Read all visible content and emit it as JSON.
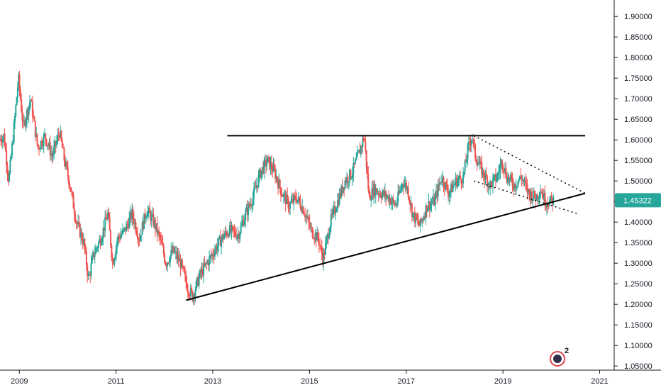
{
  "chart_data": {
    "type": "candlestick",
    "title": "",
    "xlabel": "",
    "ylabel": "",
    "ylim": [
      1.04,
      1.94
    ],
    "xlim": [
      2008.6,
      2021.3
    ],
    "x_ticks": [
      {
        "value": 2009,
        "label": "2009"
      },
      {
        "value": 2011,
        "label": "2011"
      },
      {
        "value": 2013,
        "label": "2013"
      },
      {
        "value": 2015,
        "label": "2015"
      },
      {
        "value": 2017,
        "label": "2017"
      },
      {
        "value": 2019,
        "label": "2019"
      },
      {
        "value": 2021,
        "label": "2021"
      }
    ],
    "y_ticks": [
      {
        "value": 1.05,
        "label": "1.05000"
      },
      {
        "value": 1.1,
        "label": "1.10000"
      },
      {
        "value": 1.15,
        "label": "1.15000"
      },
      {
        "value": 1.2,
        "label": "1.20000"
      },
      {
        "value": 1.25,
        "label": "1.25000"
      },
      {
        "value": 1.3,
        "label": "1.30000"
      },
      {
        "value": 1.35,
        "label": "1.35000"
      },
      {
        "value": 1.4,
        "label": "1.40000"
      },
      {
        "value": 1.45,
        "label": "1.45000"
      },
      {
        "value": 1.5,
        "label": "1.50000"
      },
      {
        "value": 1.55,
        "label": "1.55000"
      },
      {
        "value": 1.6,
        "label": "1.60000"
      },
      {
        "value": 1.65,
        "label": "1.65000"
      },
      {
        "value": 1.7,
        "label": "1.70000"
      },
      {
        "value": 1.75,
        "label": "1.75000"
      },
      {
        "value": 1.8,
        "label": "1.80000"
      },
      {
        "value": 1.85,
        "label": "1.85000"
      },
      {
        "value": 1.9,
        "label": "1.90000"
      }
    ],
    "last_price": {
      "value": 1.45322,
      "label": "1.45322",
      "color": "#26a69a"
    },
    "colors": {
      "up": "#26a69a",
      "down": "#ef5350",
      "trendline": "#000000",
      "axis": "#131722"
    },
    "grid": false,
    "price_path": [
      [
        2008.6,
        1.6
      ],
      [
        2008.7,
        1.61
      ],
      [
        2008.8,
        1.5
      ],
      [
        2008.9,
        1.62
      ],
      [
        2009.0,
        1.75
      ],
      [
        2009.1,
        1.63
      ],
      [
        2009.25,
        1.7
      ],
      [
        2009.4,
        1.58
      ],
      [
        2009.55,
        1.61
      ],
      [
        2009.7,
        1.56
      ],
      [
        2009.85,
        1.62
      ],
      [
        2009.95,
        1.55
      ],
      [
        2010.05,
        1.5
      ],
      [
        2010.2,
        1.4
      ],
      [
        2010.35,
        1.35
      ],
      [
        2010.45,
        1.26
      ],
      [
        2010.55,
        1.32
      ],
      [
        2010.7,
        1.36
      ],
      [
        2010.85,
        1.42
      ],
      [
        2010.95,
        1.3
      ],
      [
        2011.05,
        1.36
      ],
      [
        2011.2,
        1.38
      ],
      [
        2011.35,
        1.42
      ],
      [
        2011.5,
        1.36
      ],
      [
        2011.65,
        1.43
      ],
      [
        2011.8,
        1.4
      ],
      [
        2011.95,
        1.35
      ],
      [
        2012.05,
        1.3
      ],
      [
        2012.2,
        1.33
      ],
      [
        2012.35,
        1.3
      ],
      [
        2012.5,
        1.24
      ],
      [
        2012.6,
        1.22
      ],
      [
        2012.75,
        1.27
      ],
      [
        2012.9,
        1.3
      ],
      [
        2013.05,
        1.33
      ],
      [
        2013.2,
        1.36
      ],
      [
        2013.35,
        1.38
      ],
      [
        2013.55,
        1.37
      ],
      [
        2013.7,
        1.42
      ],
      [
        2013.85,
        1.46
      ],
      [
        2014.0,
        1.52
      ],
      [
        2014.15,
        1.55
      ],
      [
        2014.3,
        1.52
      ],
      [
        2014.45,
        1.47
      ],
      [
        2014.6,
        1.44
      ],
      [
        2014.75,
        1.46
      ],
      [
        2014.9,
        1.43
      ],
      [
        2015.05,
        1.38
      ],
      [
        2015.2,
        1.36
      ],
      [
        2015.3,
        1.31
      ],
      [
        2015.45,
        1.4
      ],
      [
        2015.6,
        1.45
      ],
      [
        2015.75,
        1.5
      ],
      [
        2015.9,
        1.52
      ],
      [
        2016.05,
        1.57
      ],
      [
        2016.15,
        1.61
      ],
      [
        2016.25,
        1.46
      ],
      [
        2016.35,
        1.48
      ],
      [
        2016.5,
        1.47
      ],
      [
        2016.65,
        1.46
      ],
      [
        2016.8,
        1.44
      ],
      [
        2016.95,
        1.5
      ],
      [
        2017.05,
        1.48
      ],
      [
        2017.15,
        1.42
      ],
      [
        2017.3,
        1.39
      ],
      [
        2017.45,
        1.44
      ],
      [
        2017.6,
        1.45
      ],
      [
        2017.75,
        1.51
      ],
      [
        2017.9,
        1.47
      ],
      [
        2018.05,
        1.5
      ],
      [
        2018.2,
        1.51
      ],
      [
        2018.3,
        1.58
      ],
      [
        2018.38,
        1.61
      ],
      [
        2018.45,
        1.56
      ],
      [
        2018.6,
        1.52
      ],
      [
        2018.75,
        1.49
      ],
      [
        2018.9,
        1.51
      ],
      [
        2019.0,
        1.55
      ],
      [
        2019.1,
        1.51
      ],
      [
        2019.25,
        1.49
      ],
      [
        2019.4,
        1.51
      ],
      [
        2019.55,
        1.47
      ],
      [
        2019.7,
        1.46
      ],
      [
        2019.8,
        1.48
      ],
      [
        2019.9,
        1.45
      ],
      [
        2020.0,
        1.45
      ],
      [
        2020.05,
        1.45322
      ]
    ],
    "trendlines": [
      {
        "style": "solid",
        "points": [
          [
            2012.45,
            1.21
          ],
          [
            2020.7,
            1.47
          ]
        ]
      },
      {
        "style": "solid",
        "points": [
          [
            2013.3,
            1.61
          ],
          [
            2020.7,
            1.61
          ]
        ]
      },
      {
        "style": "dotted",
        "points": [
          [
            2018.4,
            1.61
          ],
          [
            2020.7,
            1.47
          ]
        ]
      },
      {
        "style": "dotted",
        "points": [
          [
            2018.4,
            1.5
          ],
          [
            2020.55,
            1.42
          ]
        ]
      }
    ]
  },
  "badge": {
    "icon": "tradingview-logo-icon",
    "text": "2"
  }
}
